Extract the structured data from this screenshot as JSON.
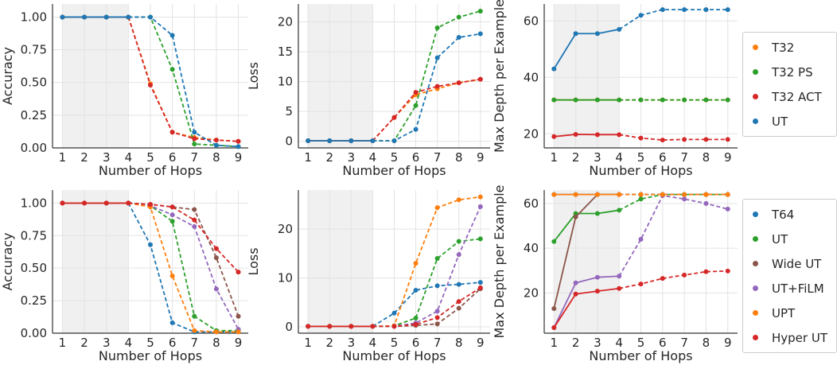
{
  "colors": {
    "blue": "#1f77b4",
    "orange": "#ff7f0e",
    "green": "#2ca02c",
    "red": "#d62728",
    "purple": "#9467bd",
    "brown": "#8c564b",
    "shade": "#f0f0f0",
    "grid": "#e3e3e3",
    "axis": "#333333"
  },
  "legends": [
    {
      "items": [
        {
          "label": "T32",
          "color": "orange"
        },
        {
          "label": "T32 PS",
          "color": "green"
        },
        {
          "label": "T32 ACT",
          "color": "red"
        },
        {
          "label": "UT",
          "color": "blue"
        }
      ]
    },
    {
      "items": [
        {
          "label": "T64",
          "color": "blue"
        },
        {
          "label": "UT",
          "color": "green"
        },
        {
          "label": "Wide UT",
          "color": "brown"
        },
        {
          "label": "UT+FiLM",
          "color": "purple"
        },
        {
          "label": "UPT",
          "color": "orange"
        },
        {
          "label": "Hyper UT",
          "color": "red"
        }
      ]
    }
  ],
  "chart_data": [
    {
      "type": "line",
      "xlabel": "Number of Hops",
      "ylabel": "Accuracy",
      "x": [
        1,
        2,
        3,
        4,
        5,
        6,
        7,
        8,
        9
      ],
      "xlim": [
        0.55,
        9.45
      ],
      "ylim": [
        0,
        1.1
      ],
      "yticks": [
        0,
        0.25,
        0.5,
        0.75,
        1.0
      ],
      "ytick_labels": [
        "0.00",
        "0.25",
        "0.50",
        "0.75",
        "1.00"
      ],
      "shaded_x_range": [
        1,
        4
      ],
      "grid": true,
      "series": [
        {
          "name": "T32",
          "color": "orange",
          "values": [
            1.0,
            1.0,
            1.0,
            1.0,
            0.49,
            0.12,
            0.08,
            0.06,
            0.05
          ]
        },
        {
          "name": "T32 PS",
          "color": "green",
          "values": [
            1.0,
            1.0,
            1.0,
            1.0,
            1.0,
            0.6,
            0.03,
            0.02,
            0.01
          ]
        },
        {
          "name": "T32 ACT",
          "color": "red",
          "values": [
            1.0,
            1.0,
            1.0,
            1.0,
            0.48,
            0.12,
            0.07,
            0.06,
            0.05
          ]
        },
        {
          "name": "UT",
          "color": "blue",
          "values": [
            1.0,
            1.0,
            1.0,
            1.0,
            1.0,
            0.86,
            0.12,
            0.02,
            0.01
          ]
        }
      ]
    },
    {
      "type": "line",
      "xlabel": "Number of Hops",
      "ylabel": "Loss",
      "x": [
        1,
        2,
        3,
        4,
        5,
        6,
        7,
        8,
        9
      ],
      "xlim": [
        0.55,
        9.45
      ],
      "ylim": [
        -1.1,
        23
      ],
      "yticks": [
        0,
        5,
        10,
        15,
        20
      ],
      "ytick_labels": [
        "0",
        "5",
        "10",
        "15",
        "20"
      ],
      "shaded_x_range": [
        1,
        4
      ],
      "grid": true,
      "series": [
        {
          "name": "T32",
          "color": "orange",
          "values": [
            0.1,
            0.1,
            0.1,
            0.1,
            4.0,
            7.8,
            8.8,
            9.8,
            10.4
          ]
        },
        {
          "name": "T32 PS",
          "color": "green",
          "values": [
            0.1,
            0.1,
            0.1,
            0.1,
            0.1,
            6.0,
            19.0,
            20.8,
            21.8
          ]
        },
        {
          "name": "T32 ACT",
          "color": "red",
          "values": [
            0.1,
            0.1,
            0.1,
            0.1,
            4.0,
            8.2,
            9.2,
            9.8,
            10.4
          ]
        },
        {
          "name": "UT",
          "color": "blue",
          "values": [
            0.1,
            0.1,
            0.1,
            0.1,
            0.1,
            2.0,
            14.0,
            17.4,
            18.0
          ]
        }
      ]
    },
    {
      "type": "line",
      "xlabel": "Number of Hops",
      "ylabel": "Max Depth per Example",
      "x": [
        1,
        2,
        3,
        4,
        5,
        6,
        7,
        8,
        9
      ],
      "xlim": [
        0.55,
        9.45
      ],
      "ylim": [
        15,
        66
      ],
      "yticks": [
        20,
        40,
        60
      ],
      "ytick_labels": [
        "20",
        "40",
        "60"
      ],
      "shaded_x_range": [
        1,
        4
      ],
      "grid": true,
      "series": [
        {
          "name": "T32",
          "color": "orange",
          "values": [
            32,
            32,
            32,
            32,
            32,
            32,
            32,
            32,
            32
          ]
        },
        {
          "name": "T32 PS",
          "color": "green",
          "values": [
            32,
            32,
            32,
            32,
            32,
            32,
            32,
            32,
            32
          ]
        },
        {
          "name": "T32 ACT",
          "color": "red",
          "values": [
            19,
            19.8,
            19.7,
            19.7,
            18.5,
            17.8,
            18,
            18,
            18
          ]
        },
        {
          "name": "UT",
          "color": "blue",
          "values": [
            43,
            55.5,
            55.5,
            57,
            62,
            64,
            64,
            64,
            64
          ]
        }
      ]
    },
    {
      "type": "line",
      "xlabel": "Number of Hops",
      "ylabel": "Accuracy",
      "x": [
        1,
        2,
        3,
        4,
        5,
        6,
        7,
        8,
        9
      ],
      "xlim": [
        0.55,
        9.45
      ],
      "ylim": [
        0,
        1.1
      ],
      "yticks": [
        0,
        0.25,
        0.5,
        0.75,
        1.0
      ],
      "ytick_labels": [
        "0.00",
        "0.25",
        "0.50",
        "0.75",
        "1.00"
      ],
      "shaded_x_range": [
        1,
        4
      ],
      "grid": true,
      "series": [
        {
          "name": "T64",
          "color": "blue",
          "values": [
            1.0,
            1.0,
            1.0,
            1.0,
            0.68,
            0.08,
            0.01,
            0.01,
            0.01
          ]
        },
        {
          "name": "UT",
          "color": "green",
          "values": [
            1.0,
            1.0,
            1.0,
            1.0,
            0.98,
            0.86,
            0.13,
            0.02,
            0.02
          ]
        },
        {
          "name": "Wide UT",
          "color": "brown",
          "values": [
            1.0,
            1.0,
            1.0,
            1.0,
            0.99,
            0.97,
            0.95,
            0.58,
            0.13
          ]
        },
        {
          "name": "UT+FiLM",
          "color": "purple",
          "values": [
            1.0,
            1.0,
            1.0,
            1.0,
            0.98,
            0.91,
            0.82,
            0.34,
            0.03
          ]
        },
        {
          "name": "UPT",
          "color": "orange",
          "values": [
            1.0,
            1.0,
            1.0,
            1.0,
            0.97,
            0.44,
            0.02,
            0.01,
            0.01
          ]
        },
        {
          "name": "Hyper UT",
          "color": "red",
          "values": [
            1.0,
            1.0,
            1.0,
            1.0,
            0.99,
            0.97,
            0.87,
            0.65,
            0.47
          ]
        }
      ]
    },
    {
      "type": "line",
      "xlabel": "Number of Hops",
      "ylabel": "Loss",
      "x": [
        1,
        2,
        3,
        4,
        5,
        6,
        7,
        8,
        9
      ],
      "xlim": [
        0.55,
        9.45
      ],
      "ylim": [
        -1.3,
        28
      ],
      "yticks": [
        0,
        10,
        20
      ],
      "ytick_labels": [
        "0",
        "10",
        "20"
      ],
      "shaded_x_range": [
        1,
        4
      ],
      "grid": true,
      "series": [
        {
          "name": "T64",
          "color": "blue",
          "values": [
            0.1,
            0.1,
            0.1,
            0.1,
            2.8,
            7.5,
            8.4,
            8.7,
            9.1
          ]
        },
        {
          "name": "UT",
          "color": "green",
          "values": [
            0.1,
            0.1,
            0.1,
            0.1,
            0.2,
            1.8,
            14.0,
            17.5,
            18.0
          ]
        },
        {
          "name": "Wide UT",
          "color": "brown",
          "values": [
            0.1,
            0.1,
            0.1,
            0.1,
            0.1,
            0.3,
            0.6,
            3.8,
            7.8
          ]
        },
        {
          "name": "UT+FiLM",
          "color": "purple",
          "values": [
            0.1,
            0.1,
            0.1,
            0.1,
            0.1,
            0.8,
            3.2,
            14.8,
            24.6
          ]
        },
        {
          "name": "UPT",
          "color": "orange",
          "values": [
            0.1,
            0.1,
            0.1,
            0.1,
            0.2,
            13.0,
            24.4,
            26.0,
            26.6
          ]
        },
        {
          "name": "Hyper UT",
          "color": "red",
          "values": [
            0.1,
            0.1,
            0.1,
            0.1,
            0.1,
            0.5,
            1.9,
            5.2,
            8.0
          ]
        }
      ]
    },
    {
      "type": "line",
      "xlabel": "Number of Hops",
      "ylabel": "Max Depth per Example",
      "x": [
        1,
        2,
        3,
        4,
        5,
        6,
        7,
        8,
        9
      ],
      "xlim": [
        0.55,
        9.45
      ],
      "ylim": [
        2,
        66
      ],
      "yticks": [
        20,
        40,
        60
      ],
      "ytick_labels": [
        "20",
        "40",
        "60"
      ],
      "shaded_x_range": [
        1,
        4
      ],
      "grid": true,
      "series": [
        {
          "name": "T64",
          "color": "blue",
          "values": [
            64,
            64,
            64,
            64,
            64,
            64,
            64,
            64,
            64
          ]
        },
        {
          "name": "UT",
          "color": "green",
          "values": [
            43,
            55.5,
            55.5,
            57,
            62,
            64,
            64,
            64,
            64
          ]
        },
        {
          "name": "Wide UT",
          "color": "brown",
          "values": [
            13,
            54,
            64,
            64,
            64,
            64,
            64,
            64,
            64
          ]
        },
        {
          "name": "UT+FiLM",
          "color": "purple",
          "values": [
            4.5,
            24.5,
            27,
            27.5,
            44,
            63.5,
            62,
            60,
            57.5
          ]
        },
        {
          "name": "UPT",
          "color": "orange",
          "values": [
            64,
            64,
            64,
            64,
            64,
            64,
            64,
            64,
            64
          ]
        },
        {
          "name": "Hyper UT",
          "color": "red",
          "values": [
            4.5,
            19.5,
            20.8,
            22,
            24,
            26.5,
            28,
            29.5,
            29.8
          ]
        }
      ]
    }
  ]
}
